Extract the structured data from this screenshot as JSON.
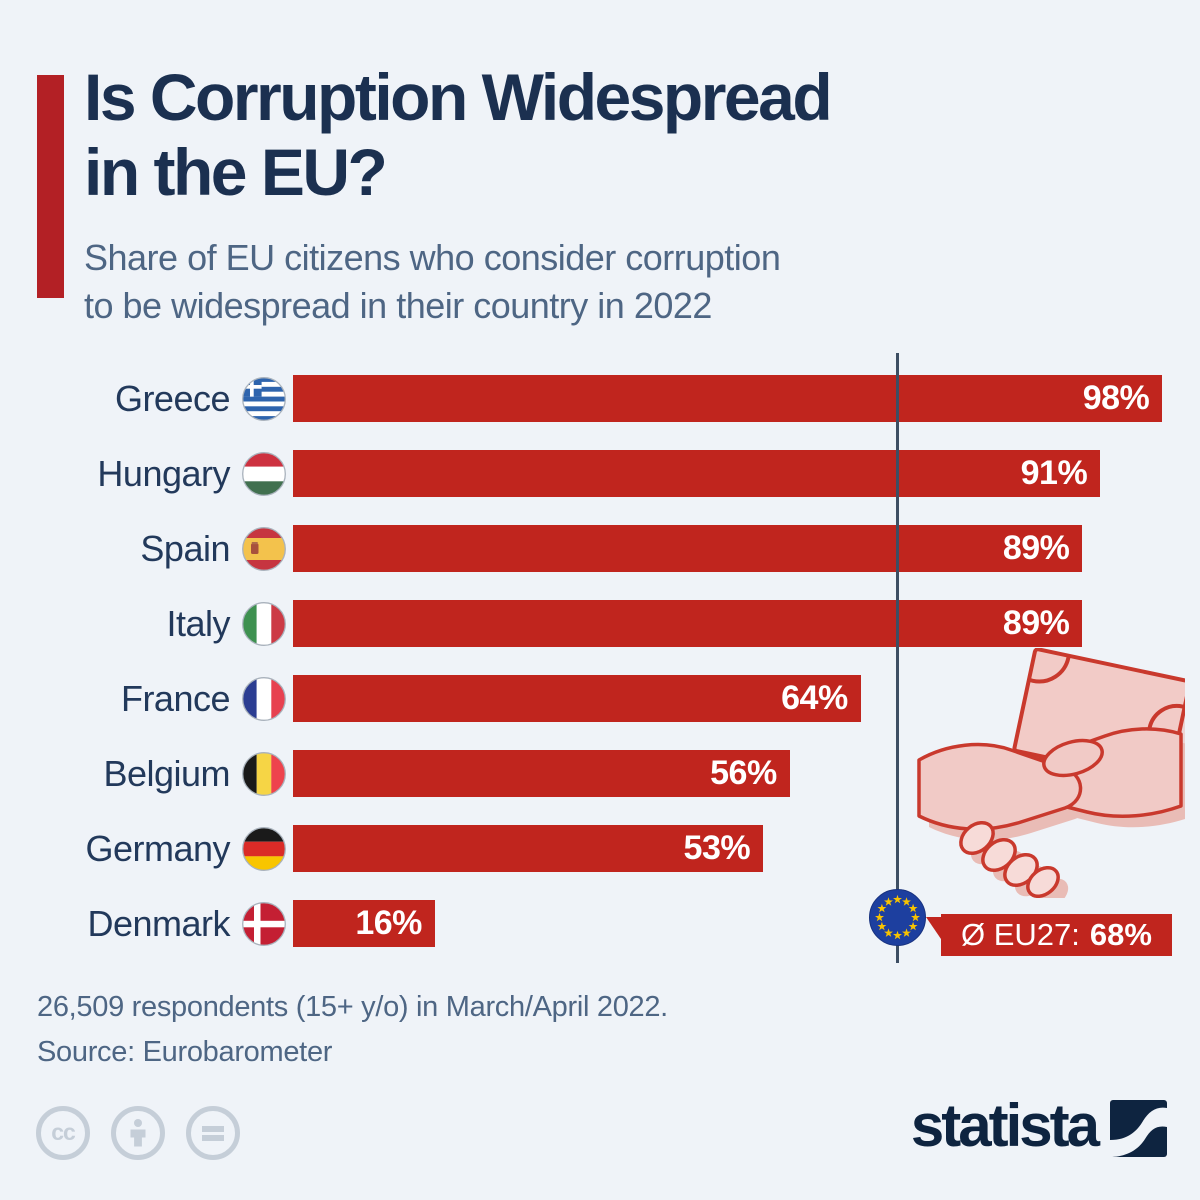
{
  "header": {
    "title_line1": "Is Corruption Widespread",
    "title_line2": "in the EU?",
    "subtitle_line1": "Share of EU citizens who consider corruption",
    "subtitle_line2": "to be widespread in their country in 2022"
  },
  "chart_data": {
    "type": "bar",
    "orientation": "horizontal",
    "title": "Is Corruption Widespread in the EU?",
    "unit": "%",
    "xlim": [
      0,
      100
    ],
    "grid": false,
    "legend": false,
    "categories": [
      "Greece",
      "Hungary",
      "Spain",
      "Italy",
      "France",
      "Belgium",
      "Germany",
      "Denmark"
    ],
    "values": [
      98,
      91,
      89,
      89,
      64,
      56,
      53,
      16
    ],
    "rows": [
      {
        "country": "Greece",
        "value": 98,
        "label": "98%"
      },
      {
        "country": "Hungary",
        "value": 91,
        "label": "91%"
      },
      {
        "country": "Spain",
        "value": 89,
        "label": "89%"
      },
      {
        "country": "Italy",
        "value": 89,
        "label": "89%"
      },
      {
        "country": "France",
        "value": 64,
        "label": "64%"
      },
      {
        "country": "Belgium",
        "value": 56,
        "label": "56%"
      },
      {
        "country": "Germany",
        "value": 53,
        "label": "53%"
      },
      {
        "country": "Denmark",
        "value": 16,
        "label": "16%"
      }
    ],
    "average": {
      "prefix": "Ø EU27:",
      "value": 68,
      "label": "68%"
    },
    "colors": {
      "bar": "#c0251e",
      "accent_bar": "#b32025",
      "title": "#1b3050",
      "subtitle": "#4e6684",
      "background": "#eff3f8",
      "average_line": "#3d4e63",
      "badge": "#c0251e"
    }
  },
  "footer": {
    "note": "26,509 respondents (15+ y/o) in March/April 2022.",
    "source": "Source: Eurobarometer"
  },
  "branding": {
    "wordmark": "statista"
  },
  "license": {
    "cc_text": "cc"
  }
}
